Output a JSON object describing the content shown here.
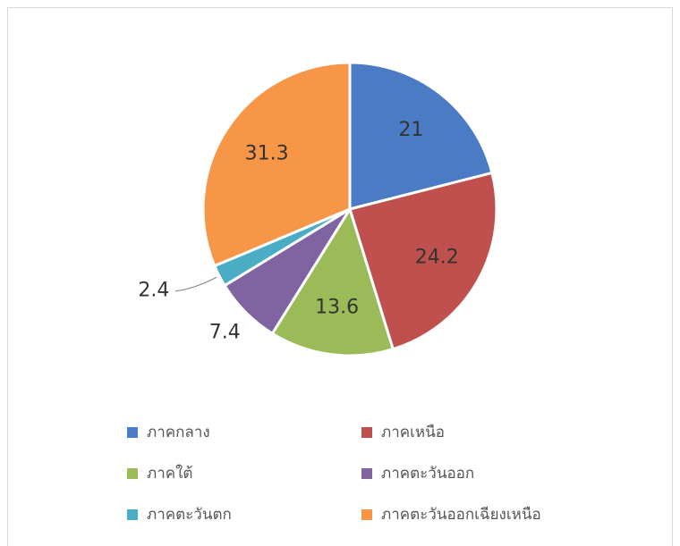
{
  "chart_data": {
    "type": "pie",
    "categories": [
      "ภาคกลาง",
      "ภาคเหนือ",
      "ภาคใต้",
      "ภาคตะวันออก",
      "ภาคตะวันตก",
      "ภาคตะวันออกเฉียงเหนือ"
    ],
    "values": [
      21,
      24.2,
      13.6,
      7.4,
      2.4,
      31.3
    ],
    "colors": [
      "#4a7bc4",
      "#c0504d",
      "#9bbb59",
      "#8064a2",
      "#4bacc6",
      "#f79646"
    ]
  }
}
